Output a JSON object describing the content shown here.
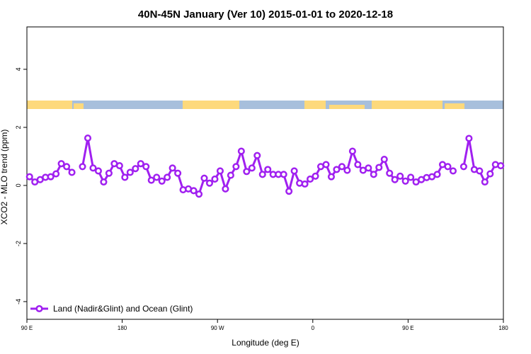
{
  "chart_data": {
    "type": "line",
    "title": "40N-45N January (Ver 10)   2015-01-01 to 2020-12-18",
    "xlabel": "Longitude (deg E)",
    "ylabel": "XCO2 - MLO trend (ppm)",
    "x": [
      92.5,
      97.5,
      102.5,
      107.5,
      112.5,
      117.5,
      122.5,
      127.5,
      132.5,
      137.5,
      142.5,
      147.5,
      152.5,
      157.5,
      162.5,
      167.5,
      172.5,
      177.5,
      182.5,
      187.5,
      192.5,
      197.5,
      202.5,
      207.5,
      212.5,
      217.5,
      222.5,
      227.5,
      232.5,
      237.5,
      242.5,
      247.5,
      252.5,
      257.5,
      262.5,
      267.5,
      272.5,
      277.5,
      282.5,
      287.5,
      292.5,
      297.5,
      302.5,
      307.5,
      312.5,
      317.5,
      322.5,
      327.5,
      332.5,
      337.5,
      342.5,
      347.5,
      352.5,
      357.5,
      362.5,
      367.5,
      372.5,
      377.5,
      382.5,
      387.5,
      392.5,
      397.5,
      402.5,
      407.5,
      412.5,
      417.5,
      422.5,
      427.5,
      432.5,
      437.5,
      442.5,
      447.5,
      452.5,
      457.5,
      462.5,
      467.5,
      472.5,
      477.5,
      482.5,
      487.5,
      492.5,
      497.5,
      502.5,
      507.5,
      512.5,
      517.5,
      522.5,
      527.5,
      532.5,
      537.5
    ],
    "series": [
      {
        "name": "Land (Nadir&Glint) and Ocean (Glint)",
        "color": "#a020f0",
        "values": [
          0.3,
          0.12,
          0.2,
          0.28,
          0.3,
          0.4,
          0.75,
          0.65,
          0.45,
          null,
          0.65,
          1.63,
          0.6,
          0.5,
          0.12,
          0.42,
          0.75,
          0.68,
          0.28,
          0.45,
          0.58,
          0.75,
          0.65,
          0.18,
          0.28,
          0.15,
          0.28,
          0.6,
          0.42,
          -0.15,
          -0.12,
          -0.18,
          -0.3,
          0.25,
          0.08,
          0.22,
          0.5,
          -0.12,
          0.35,
          0.65,
          1.18,
          0.48,
          0.6,
          1.03,
          0.38,
          0.55,
          0.38,
          0.38,
          0.38,
          -0.2,
          0.5,
          0.08,
          0.05,
          0.22,
          0.32,
          0.65,
          0.72,
          0.3,
          0.55,
          0.65,
          0.52,
          1.18,
          0.72,
          0.52,
          0.6,
          0.38,
          0.62,
          0.9,
          0.42,
          0.2,
          0.32,
          0.15,
          0.28,
          0.12,
          0.2,
          0.27,
          0.3,
          0.38,
          0.72,
          0.65,
          0.5,
          null,
          0.65,
          1.62,
          0.55,
          0.5,
          0.12,
          0.4,
          0.72,
          0.68
        ]
      }
    ],
    "xlim": [
      90,
      540
    ],
    "xticks": [
      {
        "value": 90,
        "label": "90 E"
      },
      180,
      {
        "value": 270,
        "label": "90 W"
      },
      {
        "value": 360,
        "label": "0"
      },
      {
        "value": 450,
        "label": "90 E"
      },
      {
        "value": 540,
        "label": "180"
      }
    ],
    "ylim": [
      -4.61,
      5.46
    ],
    "yticks": [
      -4,
      -2,
      0,
      2,
      4
    ],
    "legend": "bottomleft"
  }
}
